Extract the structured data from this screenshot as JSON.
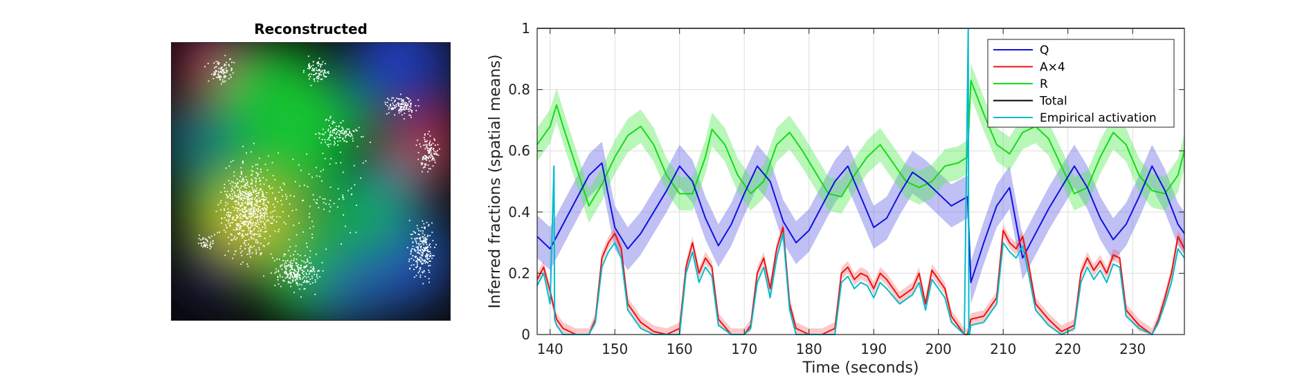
{
  "left_panel": {
    "title": "Reconstructed"
  },
  "chart_data": {
    "type": "line",
    "title": "",
    "xlabel": "Time (seconds)",
    "ylabel": "Inferred fractions (spatial means)",
    "xlim": [
      138,
      238
    ],
    "ylim": [
      0,
      1
    ],
    "xticks": [
      140,
      150,
      160,
      170,
      180,
      190,
      200,
      210,
      220,
      230
    ],
    "yticks": [
      0,
      0.2,
      0.4,
      0.6,
      0.8,
      1
    ],
    "grid": true,
    "legend_position": "top-right",
    "series": [
      {
        "name": "Q",
        "color": "#1010e0",
        "band": true,
        "x": [
          138,
          140,
          142,
          144,
          146,
          148,
          150,
          152,
          154,
          156,
          158,
          160,
          162,
          164,
          166,
          168,
          170,
          172,
          174,
          176,
          178,
          180,
          182,
          184,
          186,
          188,
          190,
          192,
          194,
          196,
          198,
          200,
          202,
          204.5,
          205,
          207,
          209,
          211,
          213,
          215,
          217,
          219,
          221,
          223,
          225,
          227,
          229,
          231,
          233,
          235,
          237,
          238
        ],
        "y": [
          0.32,
          0.28,
          0.36,
          0.44,
          0.52,
          0.56,
          0.35,
          0.28,
          0.33,
          0.4,
          0.47,
          0.55,
          0.5,
          0.38,
          0.29,
          0.36,
          0.46,
          0.55,
          0.5,
          0.37,
          0.3,
          0.34,
          0.42,
          0.5,
          0.55,
          0.45,
          0.35,
          0.38,
          0.46,
          0.53,
          0.5,
          0.46,
          0.42,
          0.45,
          0.17,
          0.3,
          0.42,
          0.48,
          0.25,
          0.33,
          0.41,
          0.48,
          0.55,
          0.48,
          0.38,
          0.31,
          0.36,
          0.45,
          0.55,
          0.47,
          0.36,
          0.33
        ]
      },
      {
        "name": "A×4",
        "color": "#ee1111",
        "band": true,
        "x": [
          138,
          139,
          140,
          141,
          142,
          144,
          146,
          147,
          148,
          149,
          150,
          151,
          152,
          154,
          156,
          158,
          160,
          161,
          162,
          163,
          164,
          165,
          166,
          168,
          170,
          171,
          172,
          173,
          174,
          175,
          176,
          177,
          178,
          180,
          182,
          184,
          185,
          186,
          187,
          188,
          189,
          190,
          191,
          192,
          194,
          196,
          197,
          198,
          199,
          200,
          201,
          202,
          204,
          204.5,
          205,
          207,
          209,
          210,
          211,
          212,
          213,
          214,
          215,
          217,
          219,
          221,
          222,
          223,
          224,
          225,
          226,
          227,
          228,
          229,
          231,
          233,
          234,
          235,
          236,
          237,
          238
        ],
        "y": [
          0.18,
          0.22,
          0.14,
          0.05,
          0.02,
          0.0,
          0.0,
          0.05,
          0.25,
          0.3,
          0.33,
          0.28,
          0.1,
          0.04,
          0.01,
          0.0,
          0.02,
          0.22,
          0.3,
          0.2,
          0.25,
          0.22,
          0.05,
          0.0,
          0.0,
          0.03,
          0.2,
          0.25,
          0.15,
          0.28,
          0.35,
          0.1,
          0.02,
          0.0,
          0.0,
          0.02,
          0.2,
          0.22,
          0.18,
          0.2,
          0.19,
          0.15,
          0.2,
          0.18,
          0.12,
          0.15,
          0.2,
          0.1,
          0.21,
          0.18,
          0.15,
          0.06,
          0.0,
          0.0,
          0.05,
          0.06,
          0.12,
          0.34,
          0.3,
          0.28,
          0.32,
          0.22,
          0.1,
          0.05,
          0.01,
          0.03,
          0.2,
          0.25,
          0.21,
          0.24,
          0.2,
          0.26,
          0.25,
          0.08,
          0.03,
          0.0,
          0.05,
          0.12,
          0.2,
          0.32,
          0.28
        ]
      },
      {
        "name": "R",
        "color": "#11dd11",
        "band": true,
        "x": [
          138,
          140,
          141,
          142,
          144,
          146,
          148,
          150,
          152,
          154,
          156,
          158,
          160,
          162,
          164,
          165,
          167,
          169,
          171,
          173,
          175,
          177,
          179,
          181,
          183,
          185,
          187,
          189,
          191,
          193,
          195,
          197,
          199,
          201,
          203,
          204.5,
          205,
          207,
          209,
          211,
          213,
          215,
          217,
          219,
          221,
          223,
          225,
          227,
          229,
          231,
          233,
          235,
          237,
          238
        ],
        "y": [
          0.62,
          0.68,
          0.75,
          0.68,
          0.55,
          0.42,
          0.49,
          0.58,
          0.65,
          0.68,
          0.62,
          0.52,
          0.46,
          0.46,
          0.58,
          0.67,
          0.62,
          0.52,
          0.46,
          0.5,
          0.62,
          0.66,
          0.6,
          0.53,
          0.46,
          0.45,
          0.52,
          0.58,
          0.62,
          0.56,
          0.5,
          0.48,
          0.5,
          0.55,
          0.56,
          0.58,
          0.83,
          0.72,
          0.62,
          0.59,
          0.66,
          0.68,
          0.64,
          0.55,
          0.46,
          0.48,
          0.58,
          0.66,
          0.62,
          0.52,
          0.47,
          0.46,
          0.52,
          0.6
        ]
      },
      {
        "name": "Total",
        "color": "#000000",
        "band": false,
        "x": [
          138,
          238
        ],
        "y": [
          1,
          1
        ]
      },
      {
        "name": "Empirical activation",
        "color": "#00bbcc",
        "band": false,
        "x": [
          138,
          139,
          140,
          140.6,
          140.7,
          141,
          142,
          144,
          146,
          147,
          148,
          149,
          150,
          151,
          152,
          154,
          156,
          158,
          160,
          161,
          162,
          163,
          164,
          165,
          166,
          168,
          170,
          171,
          172,
          173,
          174,
          175,
          176,
          177,
          178,
          180,
          182,
          184,
          185,
          186,
          187,
          188,
          189,
          190,
          191,
          192,
          194,
          196,
          197,
          198,
          199,
          200,
          201,
          202,
          204,
          204.6,
          204.7,
          204.8,
          205,
          207,
          209,
          210,
          211,
          212,
          213,
          214,
          215,
          217,
          219,
          221,
          222,
          223,
          224,
          225,
          226,
          227,
          228,
          229,
          231,
          233,
          234,
          235,
          236,
          237,
          238
        ],
        "y": [
          0.16,
          0.2,
          0.1,
          0.55,
          0.05,
          0.03,
          0.0,
          0.0,
          0.0,
          0.04,
          0.22,
          0.27,
          0.3,
          0.25,
          0.08,
          0.02,
          0.0,
          0.0,
          0.0,
          0.2,
          0.27,
          0.17,
          0.22,
          0.19,
          0.03,
          0.0,
          0.0,
          0.02,
          0.17,
          0.22,
          0.12,
          0.25,
          0.33,
          0.08,
          0.0,
          0.0,
          0.0,
          0.0,
          0.17,
          0.19,
          0.15,
          0.17,
          0.16,
          0.12,
          0.17,
          0.15,
          0.1,
          0.13,
          0.17,
          0.08,
          0.18,
          0.15,
          0.12,
          0.04,
          0.0,
          1.0,
          0.0,
          0.0,
          0.03,
          0.04,
          0.1,
          0.3,
          0.27,
          0.25,
          0.29,
          0.19,
          0.08,
          0.03,
          0.0,
          0.02,
          0.17,
          0.22,
          0.18,
          0.21,
          0.17,
          0.23,
          0.22,
          0.06,
          0.02,
          0.0,
          0.04,
          0.1,
          0.17,
          0.28,
          0.25
        ]
      }
    ]
  }
}
